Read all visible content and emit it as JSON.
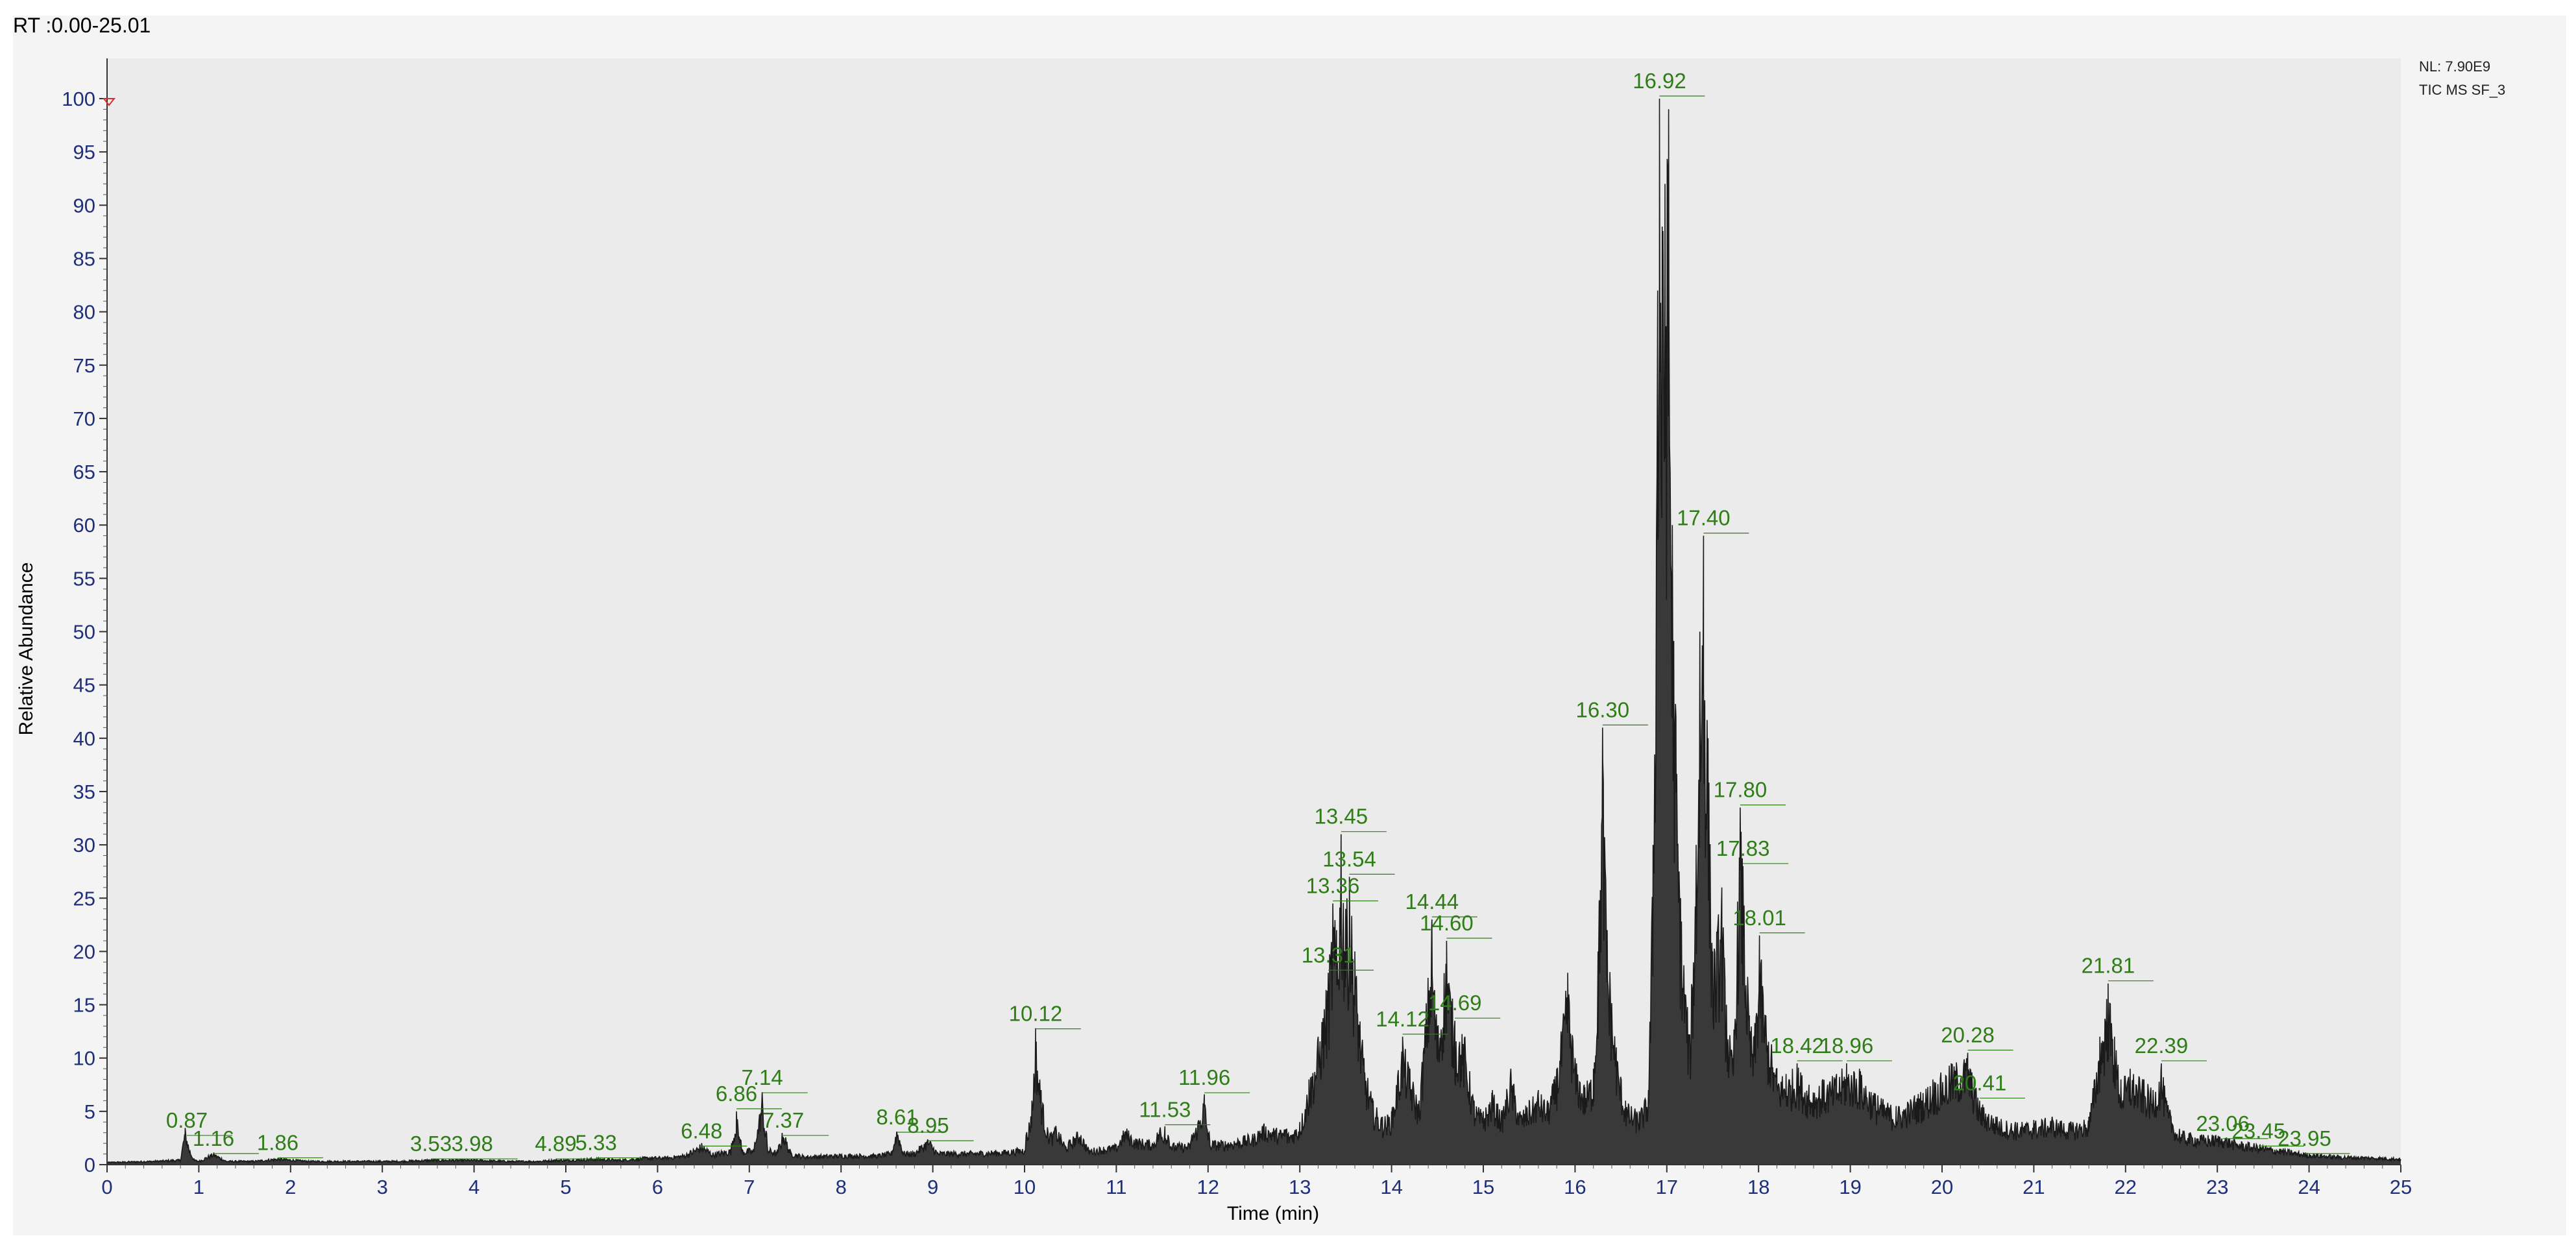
{
  "header": {
    "rt_range": "RT :0.00-25.01"
  },
  "info": {
    "nl": "NL: 7.90E9",
    "trace": "TIC  MS  SF_3"
  },
  "colors": {
    "plot_bg": "#ebebeb",
    "trace": "#1a1a1a",
    "axis_text": "#1f2f7a",
    "peak_label": "#2e7d17",
    "outer_bg": "#f4f4f4"
  },
  "chart_data": {
    "type": "line",
    "xlabel": "Time (min)",
    "ylabel": "Relative Abundance",
    "xlim": [
      0,
      25
    ],
    "ylim": [
      0,
      100
    ],
    "x_ticks": [
      0,
      1,
      2,
      3,
      4,
      5,
      6,
      7,
      8,
      9,
      10,
      11,
      12,
      13,
      14,
      15,
      16,
      17,
      18,
      19,
      20,
      21,
      22,
      23,
      24,
      25
    ],
    "y_ticks": [
      0,
      5,
      10,
      15,
      20,
      25,
      30,
      35,
      40,
      45,
      50,
      55,
      60,
      65,
      70,
      75,
      80,
      85,
      90,
      95,
      100
    ],
    "grid": false,
    "peak_labels": [
      {
        "rt": 0.87,
        "label": "0.87",
        "abundance": 2.5
      },
      {
        "rt": 1.16,
        "label": "1.16",
        "abundance": 0.8
      },
      {
        "rt": 1.86,
        "label": "1.86",
        "abundance": 0.4
      },
      {
        "rt": 3.53,
        "label": "3.53",
        "abundance": 0.3
      },
      {
        "rt": 3.98,
        "label": "3.98",
        "abundance": 0.3
      },
      {
        "rt": 4.89,
        "label": "4.89",
        "abundance": 0.3
      },
      {
        "rt": 5.33,
        "label": "5.33",
        "abundance": 0.4
      },
      {
        "rt": 6.48,
        "label": "6.48",
        "abundance": 1.5
      },
      {
        "rt": 6.86,
        "label": "6.86",
        "abundance": 5.0
      },
      {
        "rt": 7.14,
        "label": "7.14",
        "abundance": 6.5
      },
      {
        "rt": 7.37,
        "label": "7.37",
        "abundance": 2.5
      },
      {
        "rt": 8.61,
        "label": "8.61",
        "abundance": 2.8
      },
      {
        "rt": 8.95,
        "label": "8.95",
        "abundance": 2.0
      },
      {
        "rt": 10.12,
        "label": "10.12",
        "abundance": 12.5
      },
      {
        "rt": 11.53,
        "label": "11.53",
        "abundance": 3.5
      },
      {
        "rt": 11.96,
        "label": "11.96",
        "abundance": 6.5
      },
      {
        "rt": 13.31,
        "label": "13.31",
        "abundance": 18.0
      },
      {
        "rt": 13.36,
        "label": "13.36",
        "abundance": 24.5
      },
      {
        "rt": 13.45,
        "label": "13.45",
        "abundance": 31.0
      },
      {
        "rt": 13.54,
        "label": "13.54",
        "abundance": 27.0
      },
      {
        "rt": 14.12,
        "label": "14.12",
        "abundance": 12.0
      },
      {
        "rt": 14.44,
        "label": "14.44",
        "abundance": 23.0
      },
      {
        "rt": 14.6,
        "label": "14.60",
        "abundance": 21.0
      },
      {
        "rt": 14.69,
        "label": "14.69",
        "abundance": 13.5
      },
      {
        "rt": 16.3,
        "label": "16.30",
        "abundance": 41.0
      },
      {
        "rt": 16.92,
        "label": "16.92",
        "abundance": 100.0
      },
      {
        "rt": 17.4,
        "label": "17.40",
        "abundance": 59.0
      },
      {
        "rt": 17.8,
        "label": "17.80",
        "abundance": 33.5
      },
      {
        "rt": 17.83,
        "label": "17.83",
        "abundance": 28.0
      },
      {
        "rt": 18.01,
        "label": "18.01",
        "abundance": 21.5
      },
      {
        "rt": 18.42,
        "label": "18.42",
        "abundance": 9.5
      },
      {
        "rt": 18.96,
        "label": "18.96",
        "abundance": 9.5
      },
      {
        "rt": 20.28,
        "label": "20.28",
        "abundance": 10.5
      },
      {
        "rt": 20.41,
        "label": "20.41",
        "abundance": 6.0
      },
      {
        "rt": 21.81,
        "label": "21.81",
        "abundance": 17.0
      },
      {
        "rt": 22.39,
        "label": "22.39",
        "abundance": 9.5
      },
      {
        "rt": 23.06,
        "label": "23.06",
        "abundance": 2.2
      },
      {
        "rt": 23.45,
        "label": "23.45",
        "abundance": 1.5
      },
      {
        "rt": 23.95,
        "label": "23.95",
        "abundance": 0.8
      }
    ],
    "trace_points": [
      [
        0.0,
        0.2
      ],
      [
        0.5,
        0.3
      ],
      [
        0.8,
        0.4
      ],
      [
        0.85,
        2.8
      ],
      [
        0.9,
        1.2
      ],
      [
        0.95,
        0.4
      ],
      [
        1.0,
        0.3
      ],
      [
        1.16,
        0.9
      ],
      [
        1.3,
        0.3
      ],
      [
        1.6,
        0.3
      ],
      [
        1.86,
        0.5
      ],
      [
        2.2,
        0.3
      ],
      [
        2.8,
        0.3
      ],
      [
        3.2,
        0.3
      ],
      [
        3.53,
        0.4
      ],
      [
        3.98,
        0.4
      ],
      [
        4.4,
        0.3
      ],
      [
        4.7,
        0.3
      ],
      [
        4.89,
        0.4
      ],
      [
        5.0,
        0.4
      ],
      [
        5.33,
        0.5
      ],
      [
        5.6,
        0.4
      ],
      [
        5.9,
        0.6
      ],
      [
        6.1,
        0.6
      ],
      [
        6.3,
        0.8
      ],
      [
        6.48,
        1.6
      ],
      [
        6.6,
        0.9
      ],
      [
        6.8,
        1.2
      ],
      [
        6.86,
        5.0
      ],
      [
        6.92,
        1.2
      ],
      [
        7.05,
        1.2
      ],
      [
        7.14,
        6.8
      ],
      [
        7.2,
        1.3
      ],
      [
        7.3,
        1.0
      ],
      [
        7.37,
        2.6
      ],
      [
        7.45,
        1.0
      ],
      [
        7.6,
        0.7
      ],
      [
        8.0,
        0.8
      ],
      [
        8.4,
        0.8
      ],
      [
        8.55,
        1.0
      ],
      [
        8.61,
        2.9
      ],
      [
        8.68,
        1.0
      ],
      [
        8.8,
        1.0
      ],
      [
        8.95,
        2.0
      ],
      [
        9.05,
        1.0
      ],
      [
        9.4,
        1.0
      ],
      [
        9.8,
        1.1
      ],
      [
        10.0,
        1.3
      ],
      [
        10.08,
        6.0
      ],
      [
        10.12,
        12.8
      ],
      [
        10.18,
        7.0
      ],
      [
        10.25,
        3.5
      ],
      [
        10.35,
        2.8
      ],
      [
        10.45,
        1.5
      ],
      [
        10.6,
        2.6
      ],
      [
        10.7,
        1.2
      ],
      [
        11.0,
        1.5
      ],
      [
        11.1,
        2.8
      ],
      [
        11.2,
        2.0
      ],
      [
        11.4,
        1.8
      ],
      [
        11.53,
        3.6
      ],
      [
        11.6,
        1.6
      ],
      [
        11.8,
        1.6
      ],
      [
        11.96,
        6.6
      ],
      [
        12.02,
        1.8
      ],
      [
        12.2,
        1.8
      ],
      [
        12.5,
        2.3
      ],
      [
        12.6,
        3.0
      ],
      [
        12.8,
        2.6
      ],
      [
        13.0,
        4.0
      ],
      [
        13.1,
        8.0
      ],
      [
        13.2,
        12.0
      ],
      [
        13.31,
        18.0
      ],
      [
        13.36,
        24.5
      ],
      [
        13.4,
        22.0
      ],
      [
        13.45,
        31.0
      ],
      [
        13.5,
        24.0
      ],
      [
        13.54,
        27.0
      ],
      [
        13.6,
        20.0
      ],
      [
        13.7,
        10.0
      ],
      [
        13.8,
        6.0
      ],
      [
        13.9,
        4.5
      ],
      [
        14.0,
        5.0
      ],
      [
        14.12,
        12.0
      ],
      [
        14.2,
        9.0
      ],
      [
        14.3,
        6.0
      ],
      [
        14.44,
        23.0
      ],
      [
        14.5,
        13.0
      ],
      [
        14.6,
        21.0
      ],
      [
        14.69,
        13.5
      ],
      [
        14.8,
        12.0
      ],
      [
        14.9,
        6.0
      ],
      [
        15.0,
        5.0
      ],
      [
        15.1,
        7.0
      ],
      [
        15.2,
        5.0
      ],
      [
        15.3,
        9.0
      ],
      [
        15.4,
        5.0
      ],
      [
        15.5,
        6.0
      ],
      [
        15.6,
        7.0
      ],
      [
        15.7,
        6.0
      ],
      [
        15.8,
        9.0
      ],
      [
        15.92,
        18.0
      ],
      [
        16.0,
        10.0
      ],
      [
        16.1,
        7.5
      ],
      [
        16.2,
        9.0
      ],
      [
        16.25,
        20.0
      ],
      [
        16.3,
        41.0
      ],
      [
        16.35,
        22.0
      ],
      [
        16.45,
        11.0
      ],
      [
        16.55,
        6.0
      ],
      [
        16.7,
        5.0
      ],
      [
        16.8,
        7.0
      ],
      [
        16.85,
        30.0
      ],
      [
        16.9,
        82.0
      ],
      [
        16.92,
        100.0
      ],
      [
        16.95,
        88.0
      ],
      [
        16.98,
        92.0
      ],
      [
        17.02,
        99.0
      ],
      [
        17.06,
        60.0
      ],
      [
        17.1,
        42.0
      ],
      [
        17.15,
        25.0
      ],
      [
        17.25,
        12.0
      ],
      [
        17.32,
        30.0
      ],
      [
        17.36,
        50.0
      ],
      [
        17.4,
        59.0
      ],
      [
        17.45,
        40.0
      ],
      [
        17.5,
        20.0
      ],
      [
        17.6,
        26.0
      ],
      [
        17.65,
        15.0
      ],
      [
        17.72,
        10.0
      ],
      [
        17.8,
        33.5
      ],
      [
        17.83,
        28.0
      ],
      [
        17.9,
        14.0
      ],
      [
        17.95,
        12.0
      ],
      [
        18.01,
        21.5
      ],
      [
        18.08,
        14.0
      ],
      [
        18.2,
        9.0
      ],
      [
        18.3,
        8.5
      ],
      [
        18.42,
        9.5
      ],
      [
        18.55,
        7.5
      ],
      [
        18.7,
        8.0
      ],
      [
        18.85,
        8.5
      ],
      [
        18.96,
        9.5
      ],
      [
        19.1,
        9.0
      ],
      [
        19.3,
        6.5
      ],
      [
        19.5,
        5.5
      ],
      [
        19.7,
        6.5
      ],
      [
        19.9,
        8.0
      ],
      [
        20.1,
        9.5
      ],
      [
        20.28,
        10.5
      ],
      [
        20.35,
        8.0
      ],
      [
        20.41,
        6.0
      ],
      [
        20.6,
        4.5
      ],
      [
        20.8,
        4.0
      ],
      [
        21.0,
        4.2
      ],
      [
        21.2,
        4.5
      ],
      [
        21.4,
        4.0
      ],
      [
        21.6,
        4.5
      ],
      [
        21.72,
        12.0
      ],
      [
        21.81,
        17.0
      ],
      [
        21.88,
        12.0
      ],
      [
        21.95,
        8.0
      ],
      [
        22.05,
        9.0
      ],
      [
        22.2,
        8.0
      ],
      [
        22.3,
        7.0
      ],
      [
        22.39,
        9.5
      ],
      [
        22.45,
        6.0
      ],
      [
        22.6,
        2.5
      ],
      [
        22.8,
        2.2
      ],
      [
        23.06,
        2.2
      ],
      [
        23.2,
        1.8
      ],
      [
        23.45,
        1.5
      ],
      [
        23.7,
        1.2
      ],
      [
        23.95,
        0.9
      ],
      [
        24.3,
        0.7
      ],
      [
        24.7,
        0.6
      ],
      [
        25.0,
        0.5
      ]
    ]
  }
}
